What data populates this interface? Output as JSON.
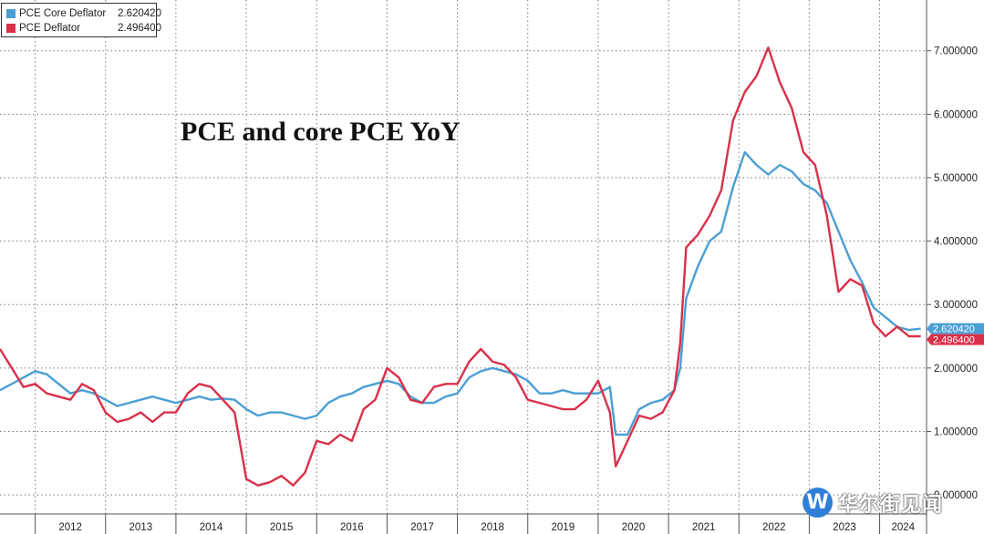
{
  "legend": {
    "items": [
      {
        "name": "PCE Core Deflator",
        "value": "2.620420",
        "color": "#4a9fd4"
      },
      {
        "name": "PCE Deflator",
        "value": "2.496400",
        "color": "#d9304a"
      }
    ]
  },
  "watermark": {
    "mark": "W",
    "text": "华尔街见闻"
  },
  "chart_data": {
    "type": "line",
    "title": "PCE and core PCE YoY",
    "xlabel": "",
    "ylabel": "",
    "x_tick_labels": [
      "2012",
      "2013",
      "2014",
      "2015",
      "2016",
      "2017",
      "2018",
      "2019",
      "2020",
      "2021",
      "2022",
      "2023",
      "2024"
    ],
    "y_tick_labels": [
      "0.000000",
      "1.000000",
      "2.000000",
      "3.000000",
      "4.000000",
      "5.000000",
      "6.000000",
      "7.000000"
    ],
    "ylim": [
      -0.3,
      7.8
    ],
    "xlim": [
      "2011-07",
      "2024-09"
    ],
    "y_axis_position": "right",
    "grid": true,
    "legend_position": "top-left",
    "last_value_labels": [
      {
        "series": "PCE Core Deflator",
        "text": "2.620420"
      },
      {
        "series": "PCE Deflator",
        "text": "2.496400"
      }
    ],
    "series": [
      {
        "name": "PCE Core Deflator",
        "color": "#4a9fd4",
        "points": [
          [
            "2011-07",
            1.65
          ],
          [
            "2011-09",
            1.75
          ],
          [
            "2011-11",
            1.85
          ],
          [
            "2012-01",
            1.95
          ],
          [
            "2012-03",
            1.9
          ],
          [
            "2012-05",
            1.75
          ],
          [
            "2012-07",
            1.6
          ],
          [
            "2012-09",
            1.65
          ],
          [
            "2012-11",
            1.6
          ],
          [
            "2013-01",
            1.5
          ],
          [
            "2013-03",
            1.4
          ],
          [
            "2013-05",
            1.45
          ],
          [
            "2013-07",
            1.5
          ],
          [
            "2013-09",
            1.55
          ],
          [
            "2013-11",
            1.5
          ],
          [
            "2014-01",
            1.45
          ],
          [
            "2014-03",
            1.5
          ],
          [
            "2014-05",
            1.55
          ],
          [
            "2014-07",
            1.5
          ],
          [
            "2014-09",
            1.52
          ],
          [
            "2014-11",
            1.5
          ],
          [
            "2015-01",
            1.35
          ],
          [
            "2015-03",
            1.25
          ],
          [
            "2015-05",
            1.3
          ],
          [
            "2015-07",
            1.3
          ],
          [
            "2015-09",
            1.25
          ],
          [
            "2015-11",
            1.2
          ],
          [
            "2016-01",
            1.25
          ],
          [
            "2016-03",
            1.45
          ],
          [
            "2016-05",
            1.55
          ],
          [
            "2016-07",
            1.6
          ],
          [
            "2016-09",
            1.7
          ],
          [
            "2016-11",
            1.75
          ],
          [
            "2017-01",
            1.8
          ],
          [
            "2017-03",
            1.75
          ],
          [
            "2017-05",
            1.55
          ],
          [
            "2017-07",
            1.45
          ],
          [
            "2017-09",
            1.45
          ],
          [
            "2017-11",
            1.55
          ],
          [
            "2018-01",
            1.6
          ],
          [
            "2018-03",
            1.85
          ],
          [
            "2018-05",
            1.95
          ],
          [
            "2018-07",
            2.0
          ],
          [
            "2018-09",
            1.95
          ],
          [
            "2018-11",
            1.9
          ],
          [
            "2019-01",
            1.8
          ],
          [
            "2019-03",
            1.6
          ],
          [
            "2019-05",
            1.6
          ],
          [
            "2019-07",
            1.65
          ],
          [
            "2019-09",
            1.6
          ],
          [
            "2019-11",
            1.6
          ],
          [
            "2020-01",
            1.6
          ],
          [
            "2020-03",
            1.7
          ],
          [
            "2020-04",
            0.95
          ],
          [
            "2020-06",
            0.95
          ],
          [
            "2020-08",
            1.35
          ],
          [
            "2020-10",
            1.45
          ],
          [
            "2020-12",
            1.5
          ],
          [
            "2021-02",
            1.65
          ],
          [
            "2021-03",
            2.0
          ],
          [
            "2021-04",
            3.1
          ],
          [
            "2021-06",
            3.6
          ],
          [
            "2021-08",
            4.0
          ],
          [
            "2021-10",
            4.15
          ],
          [
            "2021-12",
            4.85
          ],
          [
            "2022-02",
            5.4
          ],
          [
            "2022-04",
            5.2
          ],
          [
            "2022-06",
            5.05
          ],
          [
            "2022-08",
            5.2
          ],
          [
            "2022-10",
            5.1
          ],
          [
            "2022-12",
            4.9
          ],
          [
            "2023-02",
            4.8
          ],
          [
            "2023-04",
            4.6
          ],
          [
            "2023-06",
            4.15
          ],
          [
            "2023-08",
            3.7
          ],
          [
            "2023-10",
            3.35
          ],
          [
            "2023-12",
            2.95
          ],
          [
            "2024-02",
            2.8
          ],
          [
            "2024-04",
            2.65
          ],
          [
            "2024-06",
            2.6
          ],
          [
            "2024-08",
            2.62
          ]
        ]
      },
      {
        "name": "PCE Deflator",
        "color": "#d9304a",
        "points": [
          [
            "2011-07",
            2.3
          ],
          [
            "2011-09",
            2.0
          ],
          [
            "2011-11",
            1.7
          ],
          [
            "2012-01",
            1.75
          ],
          [
            "2012-03",
            1.6
          ],
          [
            "2012-05",
            1.55
          ],
          [
            "2012-07",
            1.5
          ],
          [
            "2012-09",
            1.75
          ],
          [
            "2012-11",
            1.65
          ],
          [
            "2013-01",
            1.3
          ],
          [
            "2013-03",
            1.15
          ],
          [
            "2013-05",
            1.2
          ],
          [
            "2013-07",
            1.3
          ],
          [
            "2013-09",
            1.15
          ],
          [
            "2013-11",
            1.3
          ],
          [
            "2014-01",
            1.3
          ],
          [
            "2014-03",
            1.6
          ],
          [
            "2014-05",
            1.75
          ],
          [
            "2014-07",
            1.7
          ],
          [
            "2014-09",
            1.5
          ],
          [
            "2014-11",
            1.3
          ],
          [
            "2015-01",
            0.25
          ],
          [
            "2015-03",
            0.15
          ],
          [
            "2015-05",
            0.2
          ],
          [
            "2015-07",
            0.3
          ],
          [
            "2015-09",
            0.15
          ],
          [
            "2015-11",
            0.35
          ],
          [
            "2016-01",
            0.85
          ],
          [
            "2016-03",
            0.8
          ],
          [
            "2016-05",
            0.95
          ],
          [
            "2016-07",
            0.85
          ],
          [
            "2016-09",
            1.35
          ],
          [
            "2016-11",
            1.5
          ],
          [
            "2017-01",
            2.0
          ],
          [
            "2017-03",
            1.85
          ],
          [
            "2017-05",
            1.5
          ],
          [
            "2017-07",
            1.45
          ],
          [
            "2017-09",
            1.7
          ],
          [
            "2017-11",
            1.75
          ],
          [
            "2018-01",
            1.75
          ],
          [
            "2018-03",
            2.1
          ],
          [
            "2018-05",
            2.3
          ],
          [
            "2018-07",
            2.1
          ],
          [
            "2018-09",
            2.05
          ],
          [
            "2018-11",
            1.85
          ],
          [
            "2019-01",
            1.5
          ],
          [
            "2019-03",
            1.45
          ],
          [
            "2019-05",
            1.4
          ],
          [
            "2019-07",
            1.35
          ],
          [
            "2019-09",
            1.35
          ],
          [
            "2019-11",
            1.5
          ],
          [
            "2020-01",
            1.8
          ],
          [
            "2020-03",
            1.3
          ],
          [
            "2020-04",
            0.45
          ],
          [
            "2020-06",
            0.85
          ],
          [
            "2020-08",
            1.25
          ],
          [
            "2020-10",
            1.2
          ],
          [
            "2020-12",
            1.3
          ],
          [
            "2021-02",
            1.65
          ],
          [
            "2021-03",
            2.4
          ],
          [
            "2021-04",
            3.9
          ],
          [
            "2021-06",
            4.1
          ],
          [
            "2021-08",
            4.4
          ],
          [
            "2021-10",
            4.8
          ],
          [
            "2021-12",
            5.9
          ],
          [
            "2022-02",
            6.35
          ],
          [
            "2022-04",
            6.6
          ],
          [
            "2022-06",
            7.05
          ],
          [
            "2022-08",
            6.5
          ],
          [
            "2022-10",
            6.1
          ],
          [
            "2022-12",
            5.4
          ],
          [
            "2023-02",
            5.2
          ],
          [
            "2023-04",
            4.4
          ],
          [
            "2023-06",
            3.2
          ],
          [
            "2023-08",
            3.4
          ],
          [
            "2023-10",
            3.3
          ],
          [
            "2023-12",
            2.7
          ],
          [
            "2024-02",
            2.5
          ],
          [
            "2024-04",
            2.65
          ],
          [
            "2024-06",
            2.5
          ],
          [
            "2024-08",
            2.5
          ]
        ]
      }
    ]
  }
}
